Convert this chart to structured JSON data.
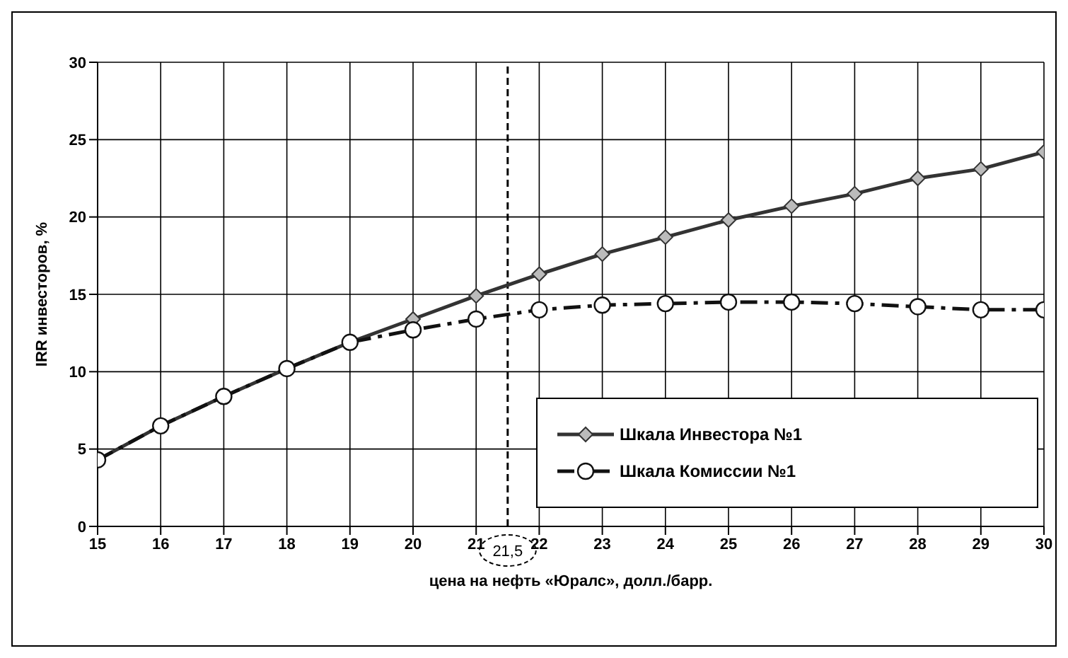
{
  "chart_data": {
    "type": "line",
    "xlabel": "цена на нефть «Юралс», долл./барр.",
    "ylabel": "IRR инвесторов, %",
    "x": [
      15,
      16,
      17,
      18,
      19,
      20,
      21,
      22,
      23,
      24,
      25,
      26,
      27,
      28,
      29,
      30
    ],
    "series": [
      {
        "name": "Шкала Инвестора №1",
        "color": "#333333",
        "marker": "diamond",
        "line_style": "solid",
        "values": [
          4.3,
          6.5,
          8.4,
          10.2,
          11.9,
          13.4,
          14.9,
          16.3,
          17.6,
          18.7,
          19.8,
          20.7,
          21.5,
          22.5,
          23.1,
          24.2
        ]
      },
      {
        "name": "Шкала Комиссии №1",
        "color": "#111111",
        "marker": "circle",
        "line_style": "dashed",
        "values": [
          4.3,
          6.5,
          8.4,
          10.2,
          11.9,
          12.7,
          13.4,
          14.0,
          14.3,
          14.4,
          14.5,
          14.5,
          14.4,
          14.2,
          14.0,
          14.0
        ]
      }
    ],
    "xlim": [
      15,
      30
    ],
    "xticks": [
      15,
      16,
      17,
      18,
      19,
      20,
      21,
      22,
      23,
      24,
      25,
      26,
      27,
      28,
      29,
      30
    ],
    "ylim": [
      0,
      30
    ],
    "yticks": [
      0,
      5,
      10,
      15,
      20,
      25,
      30
    ],
    "ref_lines": [
      {
        "axis": "x",
        "value": 21.5,
        "label": "21,5",
        "line_style": "dashed",
        "color": "#000000"
      }
    ],
    "grid": true,
    "legend": "bottom right"
  }
}
